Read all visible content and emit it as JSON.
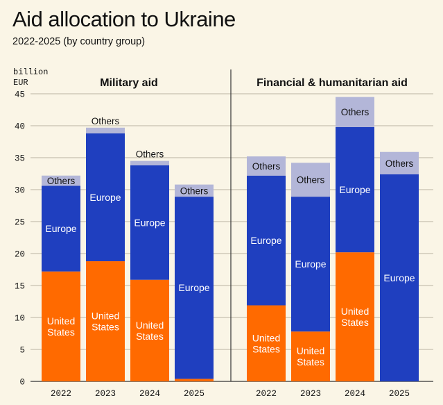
{
  "title": "Aid allocation to Ukraine",
  "subtitle": "2022-2025 (by country group)",
  "chart_data": {
    "type": "bar",
    "stacked": true,
    "ylabel": "billion EUR",
    "ylim": [
      0,
      45
    ],
    "yticks": [
      "0",
      "5",
      "10",
      "15",
      "20",
      "25",
      "30",
      "35",
      "40",
      "45"
    ],
    "grid": true,
    "colors": {
      "United States": "#ff6a00",
      "Europe": "#1f3fbf",
      "Others": "#b3b6d8"
    },
    "panels": [
      {
        "title": "Military aid",
        "categories": [
          "2022",
          "2023",
          "2024",
          "2025"
        ],
        "series": [
          {
            "name": "United States",
            "label": "United States",
            "values": [
              17.2,
              18.8,
              15.9,
              0.4
            ]
          },
          {
            "name": "Europe",
            "label": "Europe",
            "values": [
              13.4,
              20.0,
              17.9,
              28.5
            ]
          },
          {
            "name": "Others",
            "label": "Others",
            "values": [
              1.6,
              0.9,
              0.7,
              1.9
            ]
          }
        ]
      },
      {
        "title": "Financial & humanitarian aid",
        "categories": [
          "2022",
          "2023",
          "2024",
          "2025"
        ],
        "series": [
          {
            "name": "United States",
            "label": "United States",
            "values": [
              11.9,
              7.8,
              20.2,
              0
            ]
          },
          {
            "name": "Europe",
            "label": "Europe",
            "values": [
              20.3,
              21.1,
              19.6,
              32.4
            ]
          },
          {
            "name": "Others",
            "label": "Others",
            "values": [
              3.0,
              5.3,
              4.7,
              3.5
            ]
          }
        ]
      }
    ]
  }
}
